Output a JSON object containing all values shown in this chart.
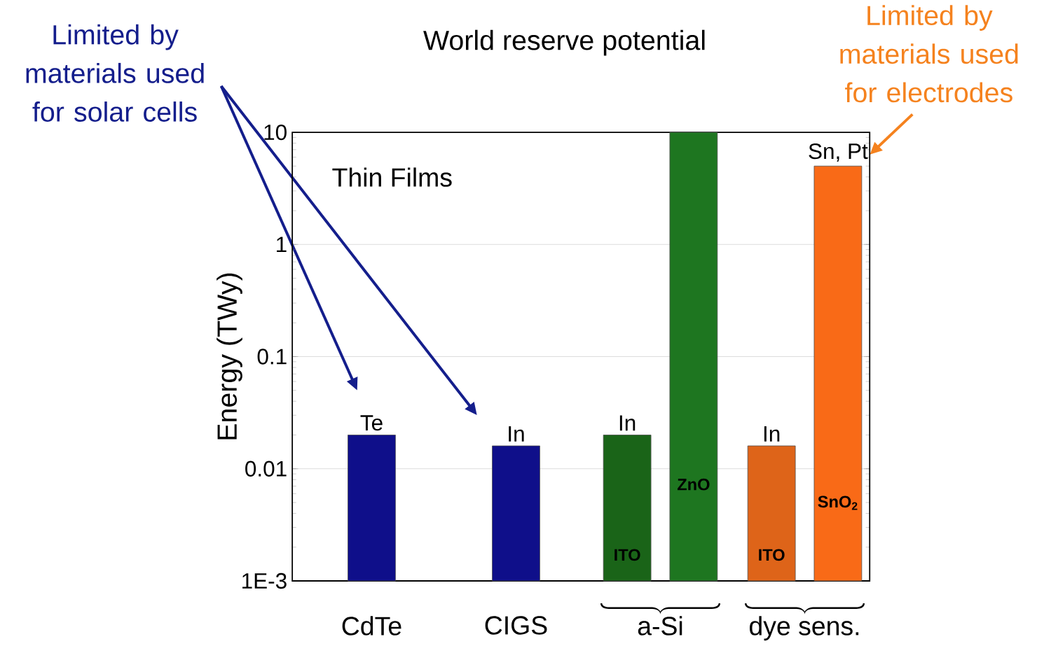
{
  "chart_data": {
    "type": "bar",
    "title": "World reserve potential",
    "ylabel": "Energy (TWy)",
    "categories": [
      "CdTe",
      "CIGS",
      "a-Si",
      "dye sens."
    ],
    "series": [
      {
        "colors": [
          "#0f0f8a",
          "#0f0f8a",
          "#1a6418",
          "#de6419"
        ],
        "values": [
          0.02,
          0.016,
          0.02,
          0.016
        ]
      },
      {
        "colors": [
          null,
          null,
          "#1e7620",
          "#f96a17"
        ],
        "values": [
          null,
          null,
          10,
          5
        ]
      }
    ],
    "log": "y",
    "ylim": [
      0.001,
      10
    ],
    "yticks": [
      {
        "value": 0.001,
        "label": "1E-3"
      },
      {
        "value": 0.01,
        "label": "0.01"
      },
      {
        "value": 0.1,
        "label": "0.1"
      },
      {
        "value": 1,
        "label": "1"
      },
      {
        "value": 10,
        "label": "10"
      }
    ],
    "grid": "y",
    "annotations": [
      "Limited by materials used for solar cells",
      "Limited by materials used for electrodes",
      "Thin Films",
      "Te",
      "In",
      "In",
      "ITO",
      "ZnO",
      "In",
      "ITO",
      "Sn, Pt",
      "SnO$_{2}$"
    ]
  }
}
